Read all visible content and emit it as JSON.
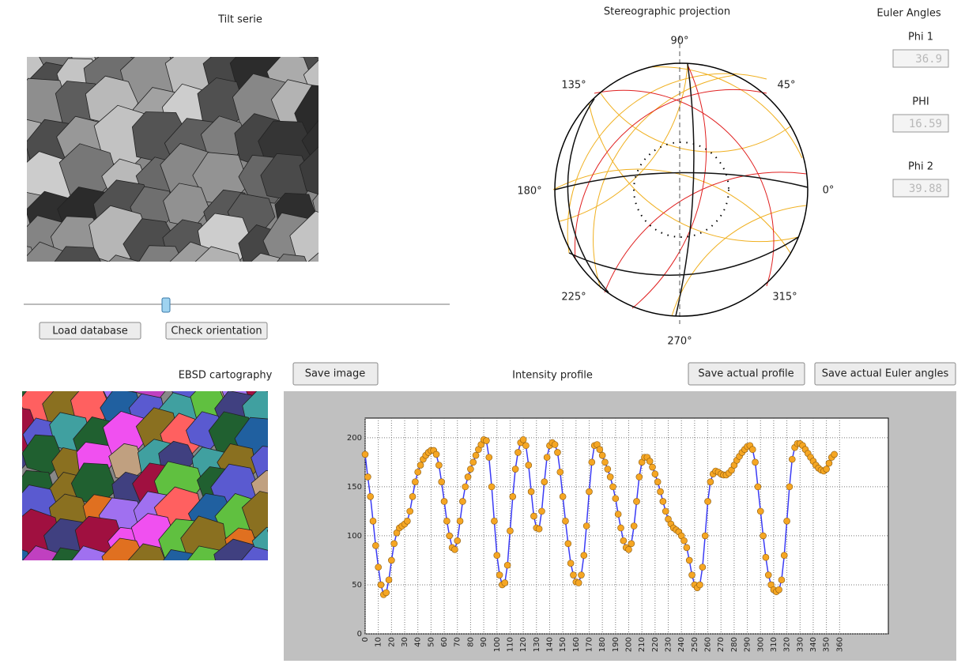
{
  "tilt_title": "Tilt serie",
  "stereo_title": "Stereographic projection",
  "euler_title": "Euler Angles",
  "ebsd_title": "EBSD cartography",
  "profile_title": "Intensity profile",
  "euler": [
    {
      "label": "Phi 1",
      "value": 36.9
    },
    {
      "label": "PHI",
      "value": 16.59
    },
    {
      "label": "Phi 2",
      "value": 39.88
    }
  ],
  "buttons": {
    "load": "Load database",
    "check": "Check orientation",
    "save_image": "Save image",
    "save_profile": "Save actual profile",
    "save_euler": "Save actual Euler angles"
  },
  "stereo_labels": [
    "90°",
    "45°",
    "0°",
    "315°",
    "270°",
    "225°",
    "180°",
    "135°"
  ],
  "chart_data": {
    "type": "line",
    "color": "#3b3bf5",
    "marker_color": "#f5a623",
    "grid": true,
    "xlim": [
      0,
      397
    ],
    "ylim": [
      0,
      220
    ],
    "yticks": [
      0,
      50,
      100,
      150,
      200
    ],
    "xticks": [
      0,
      10,
      20,
      30,
      40,
      50,
      60,
      70,
      80,
      90,
      100,
      110,
      120,
      130,
      140,
      150,
      160,
      170,
      180,
      190,
      200,
      210,
      220,
      230,
      240,
      250,
      260,
      270,
      280,
      290,
      300,
      310,
      320,
      330,
      340,
      350,
      360
    ],
    "x": [
      0,
      2,
      4,
      6,
      8,
      10,
      12,
      14,
      16,
      18,
      20,
      22,
      24,
      26,
      28,
      30,
      32,
      34,
      36,
      38,
      40,
      42,
      44,
      46,
      48,
      50,
      52,
      54,
      56,
      58,
      60,
      62,
      64,
      66,
      68,
      70,
      72,
      74,
      76,
      78,
      80,
      82,
      84,
      86,
      88,
      90,
      92,
      94,
      96,
      98,
      100,
      102,
      104,
      106,
      108,
      110,
      112,
      114,
      116,
      118,
      120,
      122,
      124,
      126,
      128,
      130,
      132,
      134,
      136,
      138,
      140,
      142,
      144,
      146,
      148,
      150,
      152,
      154,
      156,
      158,
      160,
      162,
      164,
      166,
      168,
      170,
      172,
      174,
      176,
      178,
      180,
      182,
      184,
      186,
      188,
      190,
      192,
      194,
      196,
      198,
      200,
      202,
      204,
      206,
      208,
      210,
      212,
      214,
      216,
      218,
      220,
      222,
      224,
      226,
      228,
      230,
      232,
      234,
      236,
      238,
      240,
      242,
      244,
      246,
      248,
      250,
      252,
      254,
      256,
      258,
      260,
      262,
      264,
      266,
      268,
      270,
      272,
      274,
      276,
      278,
      280,
      282,
      284,
      286,
      288,
      290,
      292,
      294,
      296,
      298,
      300,
      302,
      304,
      306,
      308,
      310,
      312,
      314,
      316,
      318,
      320,
      322,
      324,
      326,
      328,
      330,
      332,
      334,
      336,
      338,
      340,
      342,
      344,
      346,
      348,
      350,
      352,
      354,
      356
    ],
    "values": [
      183,
      160,
      140,
      115,
      90,
      68,
      50,
      40,
      42,
      55,
      75,
      92,
      103,
      108,
      110,
      112,
      115,
      125,
      140,
      155,
      165,
      172,
      178,
      182,
      185,
      187,
      187,
      183,
      172,
      155,
      135,
      115,
      100,
      88,
      86,
      95,
      115,
      135,
      150,
      160,
      168,
      175,
      182,
      188,
      193,
      198,
      197,
      180,
      150,
      115,
      80,
      60,
      50,
      52,
      70,
      105,
      140,
      168,
      185,
      195,
      198,
      192,
      172,
      145,
      120,
      108,
      107,
      125,
      155,
      180,
      192,
      195,
      193,
      185,
      165,
      140,
      115,
      92,
      72,
      60,
      53,
      52,
      60,
      80,
      110,
      145,
      175,
      192,
      193,
      188,
      182,
      175,
      168,
      160,
      150,
      138,
      122,
      108,
      95,
      88,
      86,
      92,
      110,
      135,
      160,
      175,
      180,
      180,
      176,
      170,
      163,
      155,
      145,
      135,
      125,
      117,
      112,
      108,
      106,
      104,
      100,
      95,
      88,
      75,
      60,
      50,
      47,
      50,
      68,
      100,
      135,
      155,
      163,
      166,
      165,
      163,
      162,
      162,
      164,
      167,
      172,
      177,
      181,
      185,
      188,
      191,
      192,
      188,
      175,
      150,
      125,
      100,
      78,
      60,
      50,
      45,
      43,
      45,
      55,
      80,
      115,
      150,
      178,
      190,
      194,
      194,
      192,
      188,
      184,
      180,
      176,
      172,
      169,
      167,
      166,
      168,
      174,
      180,
      183
    ]
  }
}
